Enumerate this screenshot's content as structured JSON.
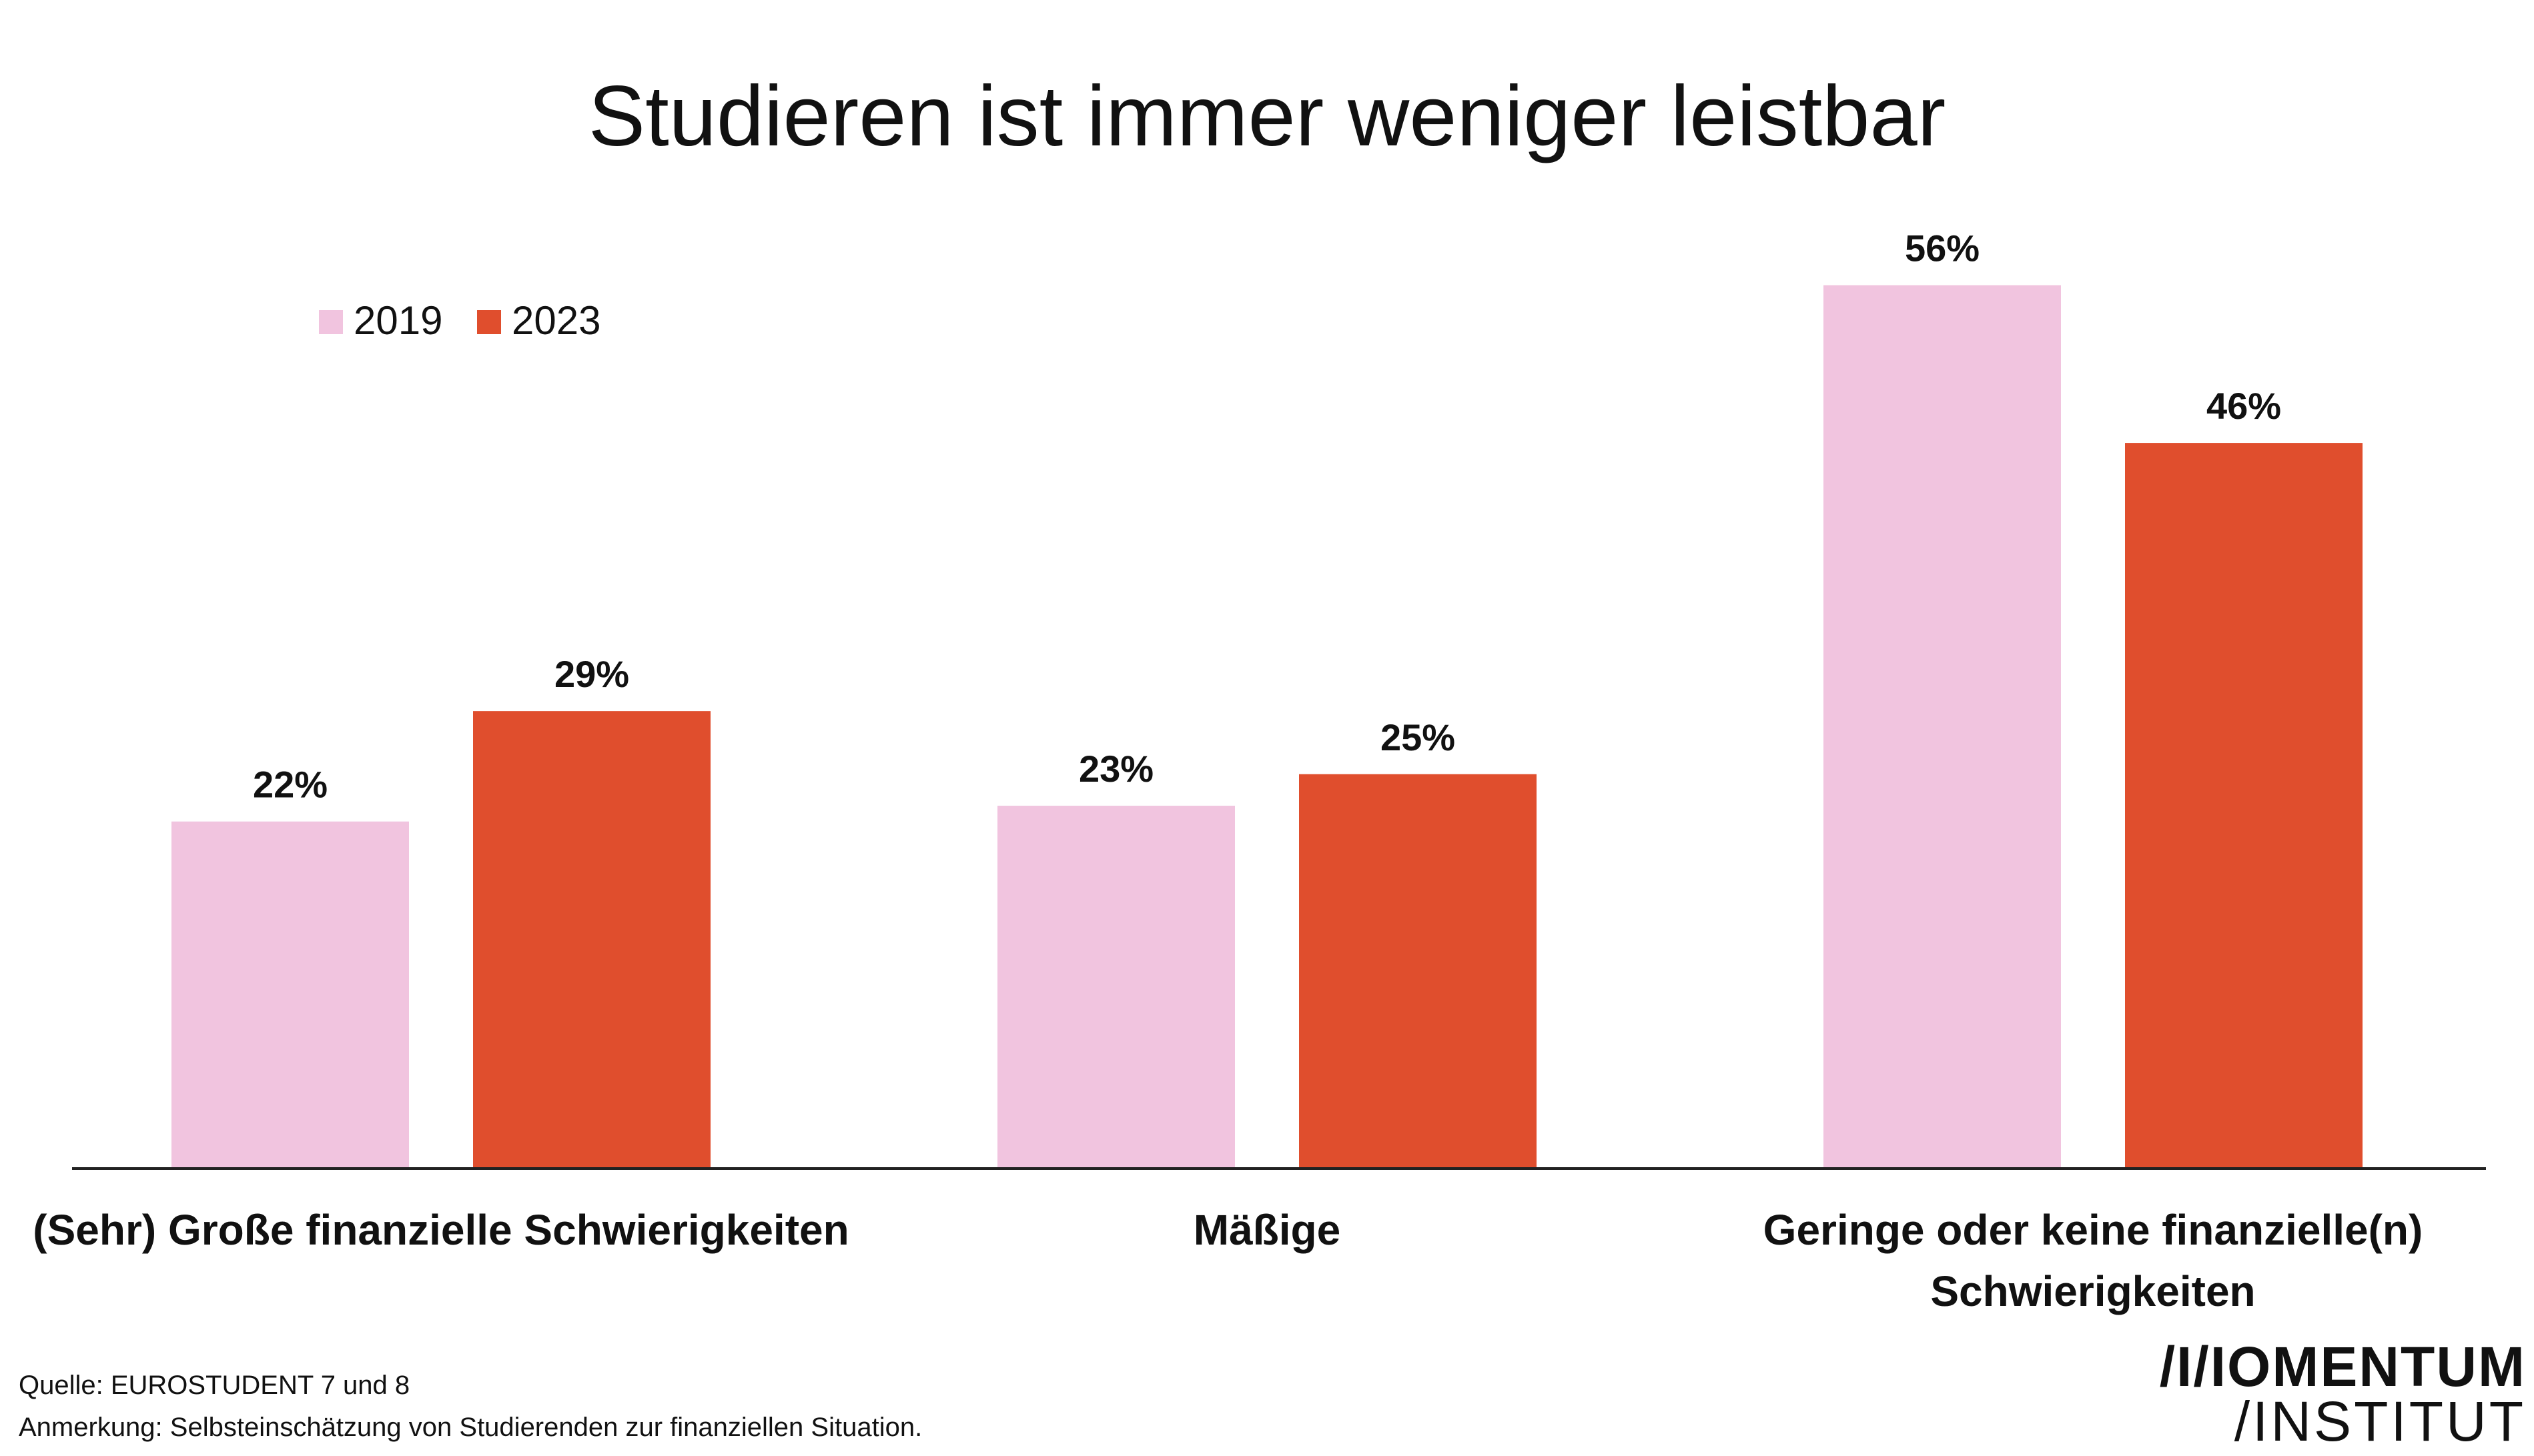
{
  "title": "Studieren ist immer weniger leistbar",
  "footnotes": {
    "source": "Quelle: EUROSTUDENT 7 und 8",
    "note": "Anmerkung: Selbsteinschätzung von Studierenden zur finanziellen Situation."
  },
  "logo": {
    "line1": "/I/IOMENTUM",
    "line2": "/INSTITUT"
  },
  "colors": {
    "series_2019": "#f1c4df",
    "series_2023": "#e04e2d",
    "axis": "#222222"
  },
  "chart_data": {
    "type": "bar",
    "title": "Studieren ist immer weniger leistbar",
    "categories": [
      [
        "(Sehr) Große finanzielle Schwierigkeiten"
      ],
      [
        "Mäßige"
      ],
      [
        "Geringe oder keine finanzielle(n)",
        "Schwierigkeiten"
      ]
    ],
    "series": [
      {
        "name": "2019",
        "values": [
          22,
          23,
          56
        ],
        "labels": [
          "22%",
          "23%",
          "56%"
        ],
        "color": "#f1c4df"
      },
      {
        "name": "2023",
        "values": [
          29,
          25,
          46
        ],
        "labels": [
          "29%",
          "25%",
          "46%"
        ],
        "color": "#e04e2d"
      }
    ],
    "ylim": [
      0,
      60
    ],
    "xlabel": "",
    "ylabel": "",
    "grid": false,
    "legend": "top-left"
  }
}
